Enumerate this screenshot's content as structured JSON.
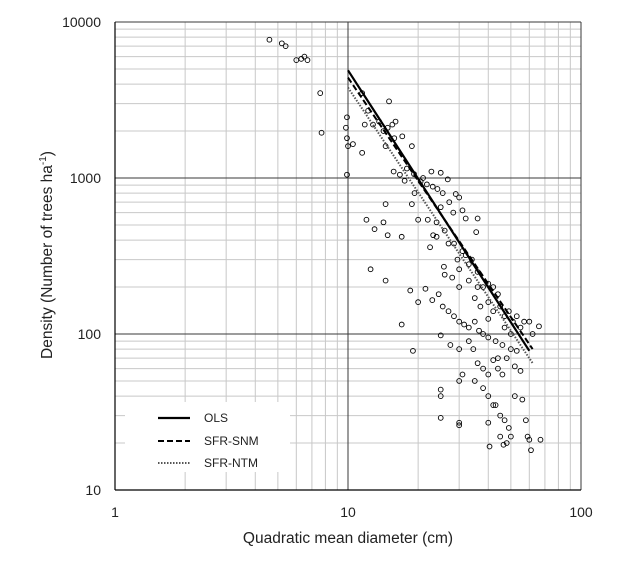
{
  "chart_data": {
    "type": "scatter",
    "title": "",
    "xlabel": "Quadratic mean diameter (cm)",
    "ylabel_main": "Density (Number of trees  ha",
    "ylabel_sup": "-1",
    "ylabel_close": ")",
    "x_scale": "log",
    "y_scale": "log",
    "xlim": [
      1,
      100
    ],
    "ylim": [
      10,
      10000
    ],
    "x_ticks": [
      "1",
      "10",
      "100"
    ],
    "y_ticks": [
      "10",
      "100",
      "1000",
      "10000"
    ],
    "grid": "on (major and minor)",
    "legend_position": "bottom-left",
    "series": [
      {
        "name": "OLS",
        "style": "solid",
        "color": "#000000",
        "x": [
          10,
          60
        ],
        "y": [
          4900,
          78
        ]
      },
      {
        "name": "SFR-SNM",
        "style": "dashed",
        "color": "#000000",
        "x": [
          10,
          62
        ],
        "y": [
          4400,
          80
        ]
      },
      {
        "name": "SFR-NTM",
        "style": "dotted",
        "color": "#555555",
        "x": [
          10,
          62
        ],
        "y": [
          3800,
          65
        ]
      }
    ],
    "scatter_points": [
      [
        4.6,
        7700
      ],
      [
        5.2,
        7300
      ],
      [
        5.4,
        7000
      ],
      [
        6.0,
        5700
      ],
      [
        6.3,
        5800
      ],
      [
        6.5,
        6000
      ],
      [
        6.7,
        5700
      ],
      [
        7.6,
        3500
      ],
      [
        7.7,
        1950
      ],
      [
        9.8,
        2100
      ],
      [
        9.9,
        2450
      ],
      [
        9.9,
        1800
      ],
      [
        10.0,
        1600
      ],
      [
        9.9,
        1050
      ],
      [
        10.5,
        1650
      ],
      [
        11.5,
        3500
      ],
      [
        11.8,
        2200
      ],
      [
        11.5,
        1450
      ],
      [
        12.2,
        2700
      ],
      [
        12.8,
        2200
      ],
      [
        13.6,
        2300
      ],
      [
        14.2,
        2000
      ],
      [
        14.5,
        1600
      ],
      [
        14.8,
        2100
      ],
      [
        15.0,
        3100
      ],
      [
        15.5,
        2200
      ],
      [
        15.8,
        1800
      ],
      [
        16.0,
        2300
      ],
      [
        17.1,
        1850
      ],
      [
        18.8,
        1600
      ],
      [
        15.7,
        1100
      ],
      [
        16.7,
        1050
      ],
      [
        17.5,
        960
      ],
      [
        17.9,
        1150
      ],
      [
        19.3,
        800
      ],
      [
        20.5,
        950
      ],
      [
        18.8,
        680
      ],
      [
        19.2,
        1060
      ],
      [
        21.0,
        1000
      ],
      [
        21.8,
        910
      ],
      [
        22.8,
        1100
      ],
      [
        23.1,
        880
      ],
      [
        25.0,
        1080
      ],
      [
        24.2,
        850
      ],
      [
        26.8,
        980
      ],
      [
        25.5,
        800
      ],
      [
        27.2,
        700
      ],
      [
        29.0,
        790
      ],
      [
        30.0,
        750
      ],
      [
        28.3,
        600
      ],
      [
        31.0,
        620
      ],
      [
        32.0,
        550
      ],
      [
        36.0,
        550
      ],
      [
        35.5,
        450
      ],
      [
        12.0,
        540
      ],
      [
        13.0,
        470
      ],
      [
        14.2,
        520
      ],
      [
        14.5,
        680
      ],
      [
        14.8,
        430
      ],
      [
        17.0,
        420
      ],
      [
        20.0,
        540
      ],
      [
        22.0,
        540
      ],
      [
        24.0,
        520
      ],
      [
        25.0,
        650
      ],
      [
        24.0,
        420
      ],
      [
        26.0,
        460
      ],
      [
        27.0,
        380
      ],
      [
        28.5,
        380
      ],
      [
        29.5,
        300
      ],
      [
        31.0,
        340
      ],
      [
        32.0,
        320
      ],
      [
        30.0,
        260
      ],
      [
        33.0,
        280
      ],
      [
        34.0,
        300
      ],
      [
        36.0,
        250
      ],
      [
        22.5,
        360
      ],
      [
        23.2,
        430
      ],
      [
        25.8,
        270
      ],
      [
        26.0,
        240
      ],
      [
        28.0,
        230
      ],
      [
        12.5,
        260
      ],
      [
        14.5,
        220
      ],
      [
        18.5,
        190
      ],
      [
        21.5,
        195
      ],
      [
        30.0,
        200
      ],
      [
        33.0,
        220
      ],
      [
        36.0,
        200
      ],
      [
        38.0,
        200
      ],
      [
        40.0,
        210
      ],
      [
        42.0,
        200
      ],
      [
        44.0,
        180
      ],
      [
        35.0,
        170
      ],
      [
        37.0,
        150
      ],
      [
        40.0,
        160
      ],
      [
        42.0,
        140
      ],
      [
        45.0,
        150
      ],
      [
        47.0,
        130
      ],
      [
        49.0,
        140
      ],
      [
        51.0,
        120
      ],
      [
        53.0,
        130
      ],
      [
        55.0,
        110
      ],
      [
        57.0,
        120
      ],
      [
        24.5,
        180
      ],
      [
        25.5,
        150
      ],
      [
        27.0,
        140
      ],
      [
        28.5,
        130
      ],
      [
        30.0,
        120
      ],
      [
        31.5,
        115
      ],
      [
        33.0,
        110
      ],
      [
        35.0,
        120
      ],
      [
        36.5,
        105
      ],
      [
        38.0,
        100
      ],
      [
        40.0,
        95
      ],
      [
        43.0,
        90
      ],
      [
        46.0,
        85
      ],
      [
        50.0,
        80
      ],
      [
        53.0,
        78
      ],
      [
        60.0,
        120
      ],
      [
        62.0,
        100
      ],
      [
        66.0,
        112
      ],
      [
        20.0,
        160
      ],
      [
        23.0,
        165
      ],
      [
        17.0,
        115
      ],
      [
        19.0,
        78
      ],
      [
        25.0,
        98
      ],
      [
        27.5,
        85
      ],
      [
        30.0,
        80
      ],
      [
        31.0,
        55
      ],
      [
        30.0,
        50
      ],
      [
        33.0,
        90
      ],
      [
        34.5,
        80
      ],
      [
        36.0,
        65
      ],
      [
        38.0,
        60
      ],
      [
        40.0,
        55
      ],
      [
        42.0,
        68
      ],
      [
        44.0,
        60
      ],
      [
        46.0,
        55
      ],
      [
        48.0,
        70
      ],
      [
        52.0,
        62
      ],
      [
        55.0,
        58
      ],
      [
        35.0,
        50
      ],
      [
        38.0,
        45
      ],
      [
        40.0,
        40
      ],
      [
        43.0,
        35
      ],
      [
        45.0,
        30
      ],
      [
        47.0,
        28
      ],
      [
        49.0,
        25
      ],
      [
        52.0,
        40
      ],
      [
        56.0,
        38
      ],
      [
        25.0,
        44
      ],
      [
        25.0,
        40
      ],
      [
        25.0,
        29
      ],
      [
        30.0,
        27
      ],
      [
        30.0,
        26
      ],
      [
        40.0,
        27
      ],
      [
        42.0,
        35
      ],
      [
        45.0,
        22
      ],
      [
        48.0,
        20
      ],
      [
        50.0,
        22
      ],
      [
        58.0,
        28
      ],
      [
        59.0,
        22
      ],
      [
        60.0,
        21
      ],
      [
        61.0,
        18
      ],
      [
        67.0,
        21
      ],
      [
        40.5,
        19
      ],
      [
        46.5,
        19.5
      ],
      [
        44.0,
        70
      ],
      [
        50.0,
        100
      ],
      [
        47.0,
        110
      ],
      [
        40.0,
        125
      ]
    ]
  }
}
